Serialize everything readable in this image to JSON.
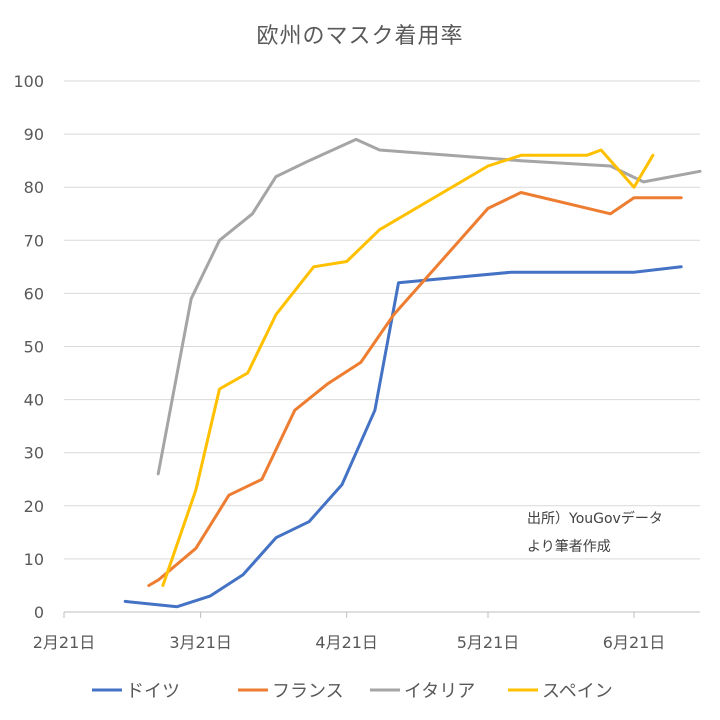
{
  "chart_data": {
    "type": "line",
    "title": "欧州のマスク着用率",
    "xlabel": "",
    "ylabel": "",
    "ylim": [
      0,
      100
    ],
    "yticks": [
      0,
      10,
      20,
      30,
      40,
      50,
      60,
      70,
      80,
      90,
      100
    ],
    "x_axis": {
      "type": "date",
      "range": [
        "2020-02-21",
        "2020-07-05"
      ],
      "ticks": [
        {
          "date": "2020-02-21",
          "label": "2月21日"
        },
        {
          "date": "2020-03-21",
          "label": "3月21日"
        },
        {
          "date": "2020-04-21",
          "label": "4月21日"
        },
        {
          "date": "2020-05-21",
          "label": "5月21日"
        },
        {
          "date": "2020-06-21",
          "label": "6月21日"
        }
      ]
    },
    "grid": true,
    "legend": "bottom",
    "series": [
      {
        "name": "ドイツ",
        "color": "#4472C4",
        "points": [
          {
            "x": "2020-03-05",
            "y": 2
          },
          {
            "x": "2020-03-16",
            "y": 1
          },
          {
            "x": "2020-03-23",
            "y": 3
          },
          {
            "x": "2020-03-30",
            "y": 7
          },
          {
            "x": "2020-04-06",
            "y": 14
          },
          {
            "x": "2020-04-13",
            "y": 17
          },
          {
            "x": "2020-04-20",
            "y": 24
          },
          {
            "x": "2020-04-27",
            "y": 38
          },
          {
            "x": "2020-05-02",
            "y": 62
          },
          {
            "x": "2020-05-26",
            "y": 64
          },
          {
            "x": "2020-06-21",
            "y": 64
          },
          {
            "x": "2020-07-01",
            "y": 65
          }
        ]
      },
      {
        "name": "フランス",
        "color": "#ED7D31",
        "points": [
          {
            "x": "2020-03-10",
            "y": 5
          },
          {
            "x": "2020-03-12",
            "y": 6
          },
          {
            "x": "2020-03-20",
            "y": 12
          },
          {
            "x": "2020-03-27",
            "y": 22
          },
          {
            "x": "2020-04-03",
            "y": 25
          },
          {
            "x": "2020-04-10",
            "y": 38
          },
          {
            "x": "2020-04-17",
            "y": 43
          },
          {
            "x": "2020-04-24",
            "y": 47
          },
          {
            "x": "2020-05-01",
            "y": 56
          },
          {
            "x": "2020-05-21",
            "y": 76
          },
          {
            "x": "2020-05-28",
            "y": 79
          },
          {
            "x": "2020-06-16",
            "y": 75
          },
          {
            "x": "2020-06-21",
            "y": 78
          },
          {
            "x": "2020-07-01",
            "y": 78
          }
        ]
      },
      {
        "name": "イタリア",
        "color": "#A5A5A5",
        "points": [
          {
            "x": "2020-03-12",
            "y": 26
          },
          {
            "x": "2020-03-19",
            "y": 59
          },
          {
            "x": "2020-03-25",
            "y": 70
          },
          {
            "x": "2020-04-01",
            "y": 75
          },
          {
            "x": "2020-04-06",
            "y": 82
          },
          {
            "x": "2020-04-13",
            "y": 85
          },
          {
            "x": "2020-04-23",
            "y": 89
          },
          {
            "x": "2020-04-28",
            "y": 87
          },
          {
            "x": "2020-05-28",
            "y": 85
          },
          {
            "x": "2020-06-16",
            "y": 84
          },
          {
            "x": "2020-06-23",
            "y": 81
          },
          {
            "x": "2020-07-05",
            "y": 83
          }
        ]
      },
      {
        "name": "スペイン",
        "color": "#FFC000",
        "points": [
          {
            "x": "2020-03-13",
            "y": 5
          },
          {
            "x": "2020-03-20",
            "y": 23
          },
          {
            "x": "2020-03-25",
            "y": 42
          },
          {
            "x": "2020-03-31",
            "y": 45
          },
          {
            "x": "2020-04-06",
            "y": 56
          },
          {
            "x": "2020-04-14",
            "y": 65
          },
          {
            "x": "2020-04-21",
            "y": 66
          },
          {
            "x": "2020-04-28",
            "y": 72
          },
          {
            "x": "2020-05-21",
            "y": 84
          },
          {
            "x": "2020-05-28",
            "y": 86
          },
          {
            "x": "2020-06-11",
            "y": 86
          },
          {
            "x": "2020-06-14",
            "y": 87
          },
          {
            "x": "2020-06-21",
            "y": 80
          },
          {
            "x": "2020-06-25",
            "y": 86
          }
        ]
      }
    ],
    "annotations": [
      "出所）YouGovデータ",
      "より筆者作成"
    ]
  }
}
